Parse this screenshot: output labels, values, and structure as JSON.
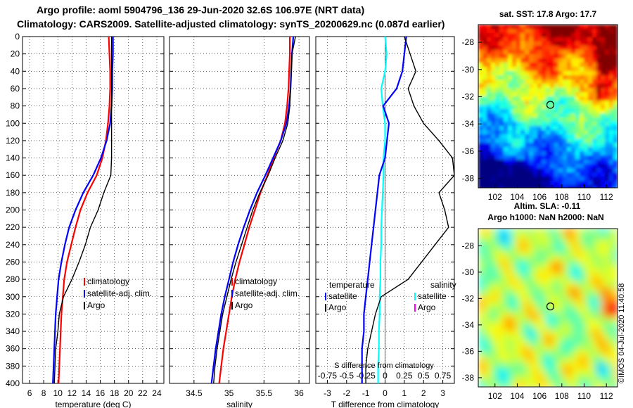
{
  "header": {
    "line1": "Argo profile: aoml 5904796_136 29-Jun-2020 32.6S 106.97E (NRT data)",
    "line2": "Climatology: CARS2009. Satellite-adjusted climatology: synTS_20200629.nc (0.087d earlier)"
  },
  "stamp": "©IMOS 04-Jul-2020 11:40:58",
  "colors": {
    "climatology": "#ff0000",
    "satellite": "#0000ff",
    "argo": "#000000",
    "sat_salinity": "#00ffff",
    "argo_salinity": "#ff00ff"
  },
  "chart_data": [
    {
      "type": "line",
      "title": "",
      "xlabel": "temperature (deg C)",
      "ylabel": "",
      "xlim": [
        5,
        25
      ],
      "ylim": [
        400,
        0
      ],
      "xticks": [
        "6",
        "8",
        "10",
        "12",
        "14",
        "16",
        "18",
        "20",
        "22",
        "24"
      ],
      "yticks": [
        "0",
        "20",
        "40",
        "60",
        "80",
        "100",
        "120",
        "140",
        "160",
        "180",
        "200",
        "220",
        "240",
        "260",
        "280",
        "300",
        "320",
        "340",
        "360",
        "380",
        "400"
      ],
      "legend": [
        "climatology",
        "satellite-adj. clim.",
        "Argo"
      ],
      "series": [
        {
          "name": "climatology",
          "x": [
            17.2,
            17.3,
            17.4,
            17.4,
            17.3,
            17.1,
            16.8,
            16.3,
            15.5,
            14.2,
            13.2,
            12.5,
            11.9,
            11.3,
            10.9,
            10.7,
            10.5,
            10.4,
            10.3,
            10.2,
            10.1
          ],
          "y": [
            0,
            20,
            40,
            60,
            80,
            100,
            120,
            140,
            160,
            180,
            200,
            220,
            240,
            260,
            280,
            300,
            320,
            340,
            360,
            380,
            400
          ]
        },
        {
          "name": "satellite-adj. clim.",
          "x": [
            17.8,
            17.8,
            17.7,
            17.7,
            17.6,
            17.4,
            16.9,
            16.1,
            15.0,
            13.6,
            12.5,
            11.6,
            11.0,
            10.5,
            10.1,
            9.9,
            9.7,
            9.6,
            9.5,
            9.4,
            9.3
          ],
          "y": [
            0,
            20,
            40,
            60,
            80,
            100,
            120,
            140,
            160,
            180,
            200,
            220,
            240,
            260,
            280,
            300,
            320,
            340,
            360,
            380,
            400
          ]
        },
        {
          "name": "Argo",
          "x": [
            17.6,
            17.6,
            17.6,
            17.6,
            17.6,
            17.6,
            17.6,
            17.6,
            17.5,
            16.5,
            15.7,
            14.6,
            13.9,
            13.0,
            12.0,
            10.8,
            10.2,
            10.0,
            9.7,
            9.6,
            9.5
          ],
          "y": [
            0,
            20,
            40,
            60,
            80,
            100,
            120,
            140,
            160,
            180,
            200,
            220,
            240,
            260,
            280,
            300,
            320,
            340,
            360,
            380,
            400
          ]
        }
      ]
    },
    {
      "type": "line",
      "xlabel": "salinity",
      "xlim": [
        34.15,
        36.15
      ],
      "ylim": [
        400,
        0
      ],
      "xticks": [
        "34.5",
        "35",
        "35.5",
        "36"
      ],
      "legend": [
        "climatology",
        "satellite-adj. clim.",
        "Argo"
      ],
      "series": [
        {
          "name": "climatology",
          "x": [
            35.87,
            35.87,
            35.86,
            35.85,
            35.83,
            35.8,
            35.74,
            35.64,
            35.55,
            35.45,
            35.37,
            35.29,
            35.22,
            35.15,
            35.09,
            35.04,
            35.0,
            34.96,
            34.92,
            34.89,
            34.86
          ],
          "y": [
            0,
            20,
            40,
            60,
            80,
            100,
            120,
            140,
            160,
            180,
            200,
            220,
            240,
            260,
            280,
            300,
            320,
            340,
            360,
            380,
            400
          ]
        },
        {
          "name": "satellite-adj. clim.",
          "x": [
            35.92,
            35.9,
            35.89,
            35.88,
            35.86,
            35.82,
            35.74,
            35.63,
            35.52,
            35.4,
            35.3,
            35.21,
            35.13,
            35.06,
            35.0,
            34.94,
            34.89,
            34.85,
            34.81,
            34.78,
            34.75
          ],
          "y": [
            0,
            20,
            40,
            60,
            80,
            100,
            120,
            140,
            160,
            180,
            200,
            220,
            240,
            260,
            280,
            300,
            320,
            340,
            360,
            380,
            400
          ]
        },
        {
          "name": "Argo",
          "x": [
            35.95,
            35.9,
            35.89,
            35.88,
            35.87,
            35.84,
            35.77,
            35.66,
            35.56,
            35.44,
            35.34,
            35.26,
            35.18,
            35.1,
            35.03,
            34.97,
            34.91,
            34.87,
            34.83,
            34.8,
            34.78
          ],
          "y": [
            0,
            20,
            40,
            60,
            80,
            100,
            120,
            140,
            160,
            180,
            200,
            220,
            240,
            260,
            280,
            300,
            320,
            340,
            360,
            380,
            400
          ]
        }
      ]
    },
    {
      "type": "line",
      "xlabel": "T difference from climatology",
      "top_label": "S difference from climatology",
      "xlim": [
        -3.6,
        3.6
      ],
      "ylim": [
        400,
        0
      ],
      "xticks": [
        "-3",
        "-2",
        "-1",
        "0",
        "1",
        "2",
        "3"
      ],
      "top_ticks": [
        "-0.75",
        "-0.5",
        "-0.25",
        "0",
        "0.25",
        "0.5",
        "0.75"
      ],
      "legend": {
        "temperature_title": "temperature",
        "salinity_title": "salinity",
        "temperature": [
          "satellite",
          "Argo"
        ],
        "salinity": [
          "satellite",
          "Argo"
        ]
      },
      "series": [
        {
          "name": "temperature satellite",
          "x": [
            1.1,
            1.0,
            0.9,
            0.6,
            -0.1,
            0.2,
            0.1,
            0.0,
            -0.3,
            -0.4,
            -0.5,
            -0.6,
            -0.7,
            -0.8,
            -0.9,
            -1.0,
            -1.1,
            -1.1,
            -1.2,
            -1.2,
            -1.2
          ],
          "y": [
            0,
            20,
            40,
            60,
            80,
            100,
            120,
            140,
            160,
            180,
            200,
            220,
            240,
            260,
            280,
            300,
            320,
            340,
            360,
            380,
            400
          ]
        },
        {
          "name": "temperature Argo",
          "x": [
            1.0,
            1.3,
            1.6,
            1.2,
            1.5,
            2.0,
            2.8,
            3.5,
            3.6,
            2.8,
            3.1,
            3.3,
            2.6,
            1.9,
            1.2,
            -0.2,
            -0.5,
            -0.7,
            -0.9,
            -1.0,
            -1.0
          ],
          "y": [
            0,
            20,
            40,
            60,
            80,
            100,
            120,
            140,
            160,
            180,
            200,
            220,
            240,
            260,
            280,
            300,
            320,
            340,
            360,
            380,
            400
          ]
        },
        {
          "name": "salinity satellite",
          "x": [
            0.0,
            0.02,
            0.0,
            -0.05,
            -0.03,
            0.0,
            0.0,
            -0.02,
            -0.02,
            -0.03,
            -0.04,
            -0.05,
            -0.05,
            -0.06,
            -0.06,
            -0.07,
            -0.07,
            -0.08,
            -0.08,
            -0.09,
            -0.09
          ],
          "y": [
            0,
            20,
            40,
            60,
            80,
            100,
            120,
            140,
            160,
            180,
            200,
            220,
            240,
            260,
            280,
            300,
            320,
            340,
            360,
            380,
            400
          ]
        }
      ]
    },
    {
      "type": "heatmap",
      "title": "sat. SST: 17.8 Argo: 17.7",
      "xticks": [
        "102",
        "104",
        "106",
        "108",
        "110",
        "112"
      ],
      "yticks": [
        "-28",
        "-30",
        "-32",
        "-34",
        "-36",
        "-38"
      ],
      "xlim": [
        100.5,
        113
      ],
      "ylim": [
        -38.7,
        -26.7
      ],
      "marker": {
        "lon": 106.97,
        "lat": -32.6
      }
    },
    {
      "type": "heatmap",
      "title": "Altim. SLA: -0.11",
      "subtitle": "Argo h1000: NaN h2000: NaN",
      "xticks": [
        "102",
        "104",
        "106",
        "108",
        "110",
        "112"
      ],
      "yticks": [
        "-28",
        "-30",
        "-32",
        "-34",
        "-36",
        "-38"
      ],
      "xlim": [
        100.5,
        113
      ],
      "ylim": [
        -38.7,
        -26.7
      ],
      "marker": {
        "lon": 106.97,
        "lat": -32.6
      }
    }
  ]
}
